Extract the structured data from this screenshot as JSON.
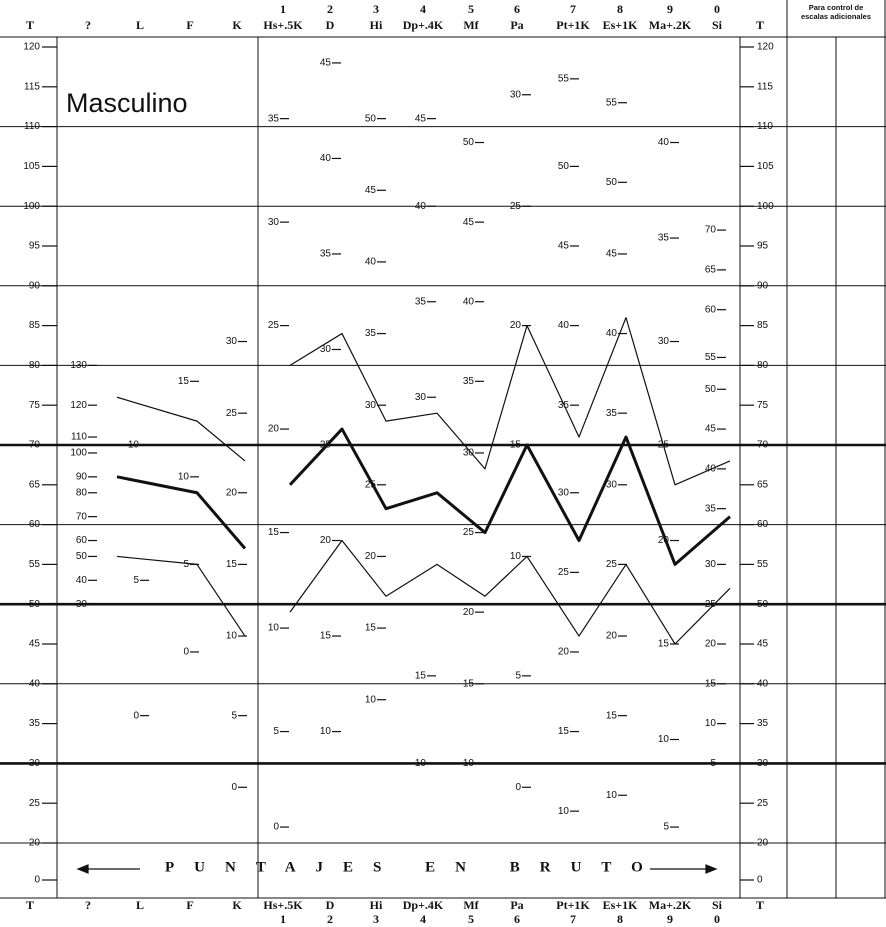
{
  "chart_data": {
    "type": "line",
    "title": "Masculino",
    "side_header": [
      "Para control de",
      "escalas adicionales"
    ],
    "raw_score_caption": "PUNTAJES EN BRUTO",
    "axis_label": "T",
    "categories": [
      "?",
      "L",
      "F",
      "K",
      "Hs+.5K",
      "D",
      "Hi",
      "Dp+.4K",
      "Mf",
      "Pa",
      "Pt+1K",
      "Es+1K",
      "Ma+.2K",
      "Si"
    ],
    "scale_numbers": [
      null,
      null,
      null,
      null,
      "1",
      "2",
      "3",
      "4",
      "5",
      "6",
      "7",
      "8",
      "9",
      "0"
    ],
    "ylim": [
      0,
      120
    ],
    "yticks": [
      120,
      115,
      110,
      105,
      100,
      95,
      90,
      85,
      80,
      75,
      70,
      65,
      60,
      55,
      50,
      45,
      40,
      35,
      30,
      25,
      20,
      0
    ],
    "grid_lines": [
      110,
      100,
      90,
      80,
      70,
      60,
      50,
      40,
      30,
      20
    ],
    "thick_grid_lines": [
      70,
      50,
      30
    ],
    "series": [
      {
        "color": "#111",
        "line_width": 1.2,
        "values": [
          null,
          76,
          73,
          68,
          80,
          84,
          73,
          74,
          67,
          85,
          71,
          86,
          65,
          68
        ]
      },
      {
        "color": "#111",
        "line_width": 3,
        "values": [
          null,
          66,
          64,
          57,
          65,
          72,
          62,
          64,
          59,
          70,
          58,
          71,
          55,
          61
        ]
      },
      {
        "color": "#111",
        "line_width": 1.2,
        "values": [
          null,
          56,
          55,
          46,
          49,
          58,
          51,
          55,
          51,
          56,
          46,
          55,
          45,
          52
        ]
      }
    ],
    "raw_scales": [
      [
        {
          "value": 80,
          "label": "130"
        },
        {
          "value": 75,
          "label": "120"
        },
        {
          "value": 71,
          "label": "110"
        },
        {
          "value": 69,
          "label": "100"
        },
        {
          "value": 66,
          "label": "90"
        },
        {
          "value": 64,
          "label": "80"
        },
        {
          "value": 61,
          "label": "70"
        },
        {
          "value": 58,
          "label": "60"
        },
        {
          "value": 56,
          "label": "50"
        },
        {
          "value": 53,
          "label": "40"
        },
        {
          "value": 50,
          "label": "30"
        }
      ],
      [
        {
          "value": 70,
          "label": "10"
        },
        {
          "value": 53,
          "label": "5"
        },
        {
          "value": 36,
          "label": "0"
        }
      ],
      [
        {
          "value": 78,
          "label": "15"
        },
        {
          "value": 66,
          "label": "10"
        },
        {
          "value": 55,
          "label": "5"
        },
        {
          "value": 44,
          "label": "0"
        }
      ],
      [
        {
          "value": 83,
          "label": "30"
        },
        {
          "value": 74,
          "label": "25"
        },
        {
          "value": 64,
          "label": "20"
        },
        {
          "value": 55,
          "label": "15"
        },
        {
          "value": 46,
          "label": "10"
        },
        {
          "value": 36,
          "label": "5"
        },
        {
          "value": 27,
          "label": "0"
        }
      ],
      [
        {
          "value": 111,
          "label": "35"
        },
        {
          "value": 98,
          "label": "30"
        },
        {
          "value": 85,
          "label": "25"
        },
        {
          "value": 72,
          "label": "20"
        },
        {
          "value": 59,
          "label": "15"
        },
        {
          "value": 47,
          "label": "10"
        },
        {
          "value": 34,
          "label": "5"
        },
        {
          "value": 22,
          "label": "0"
        }
      ],
      [
        {
          "value": 118,
          "label": "45"
        },
        {
          "value": 106,
          "label": "40"
        },
        {
          "value": 94,
          "label": "35"
        },
        {
          "value": 82,
          "label": "30"
        },
        {
          "value": 70,
          "label": "25"
        },
        {
          "value": 58,
          "label": "20"
        },
        {
          "value": 46,
          "label": "15"
        },
        {
          "value": 34,
          "label": "10"
        }
      ],
      [
        {
          "value": 111,
          "label": "50"
        },
        {
          "value": 102,
          "label": "45"
        },
        {
          "value": 93,
          "label": "40"
        },
        {
          "value": 84,
          "label": "35"
        },
        {
          "value": 75,
          "label": "30"
        },
        {
          "value": 65,
          "label": "25"
        },
        {
          "value": 56,
          "label": "20"
        },
        {
          "value": 47,
          "label": "15"
        },
        {
          "value": 38,
          "label": "10"
        }
      ],
      [
        {
          "value": 111,
          "label": "45"
        },
        {
          "value": 100,
          "label": "40"
        },
        {
          "value": 88,
          "label": "35"
        },
        {
          "value": 76,
          "label": "30"
        },
        {
          "value": 41,
          "label": "15"
        },
        {
          "value": 30,
          "label": "10"
        }
      ],
      [
        {
          "value": 108,
          "label": "50"
        },
        {
          "value": 98,
          "label": "45"
        },
        {
          "value": 88,
          "label": "40"
        },
        {
          "value": 78,
          "label": "35"
        },
        {
          "value": 69,
          "label": "30"
        },
        {
          "value": 59,
          "label": "25"
        },
        {
          "value": 49,
          "label": "20"
        },
        {
          "value": 40,
          "label": "15"
        },
        {
          "value": 30,
          "label": "10"
        }
      ],
      [
        {
          "value": 114,
          "label": "30"
        },
        {
          "value": 100,
          "label": "25"
        },
        {
          "value": 85,
          "label": "20"
        },
        {
          "value": 70,
          "label": "15"
        },
        {
          "value": 56,
          "label": "10"
        },
        {
          "value": 41,
          "label": "5"
        },
        {
          "value": 27,
          "label": "0"
        }
      ],
      [
        {
          "value": 116,
          "label": "55"
        },
        {
          "value": 105,
          "label": "50"
        },
        {
          "value": 95,
          "label": "45"
        },
        {
          "value": 85,
          "label": "40"
        },
        {
          "value": 75,
          "label": "35"
        },
        {
          "value": 64,
          "label": "30"
        },
        {
          "value": 54,
          "label": "25"
        },
        {
          "value": 44,
          "label": "20"
        },
        {
          "value": 34,
          "label": "15"
        },
        {
          "value": 24,
          "label": "10"
        }
      ],
      [
        {
          "value": 113,
          "label": "55"
        },
        {
          "value": 103,
          "label": "50"
        },
        {
          "value": 94,
          "label": "45"
        },
        {
          "value": 84,
          "label": "40"
        },
        {
          "value": 74,
          "label": "35"
        },
        {
          "value": 65,
          "label": "30"
        },
        {
          "value": 55,
          "label": "25"
        },
        {
          "value": 46,
          "label": "20"
        },
        {
          "value": 36,
          "label": "15"
        },
        {
          "value": 26,
          "label": "10"
        }
      ],
      [
        {
          "value": 108,
          "label": "40"
        },
        {
          "value": 96,
          "label": "35"
        },
        {
          "value": 83,
          "label": "30"
        },
        {
          "value": 70,
          "label": "25"
        },
        {
          "value": 58,
          "label": "20"
        },
        {
          "value": 45,
          "label": "15"
        },
        {
          "value": 33,
          "label": "10"
        },
        {
          "value": 22,
          "label": "5"
        }
      ],
      [
        {
          "value": 97,
          "label": "70"
        },
        {
          "value": 92,
          "label": "65"
        },
        {
          "value": 87,
          "label": "60"
        },
        {
          "value": 81,
          "label": "55"
        },
        {
          "value": 77,
          "label": "50"
        },
        {
          "value": 72,
          "label": "45"
        },
        {
          "value": 67,
          "label": "40"
        },
        {
          "value": 62,
          "label": "35"
        },
        {
          "value": 55,
          "label": "30"
        },
        {
          "value": 50,
          "label": "25"
        },
        {
          "value": 45,
          "label": "20"
        },
        {
          "value": 40,
          "label": "15"
        },
        {
          "value": 35,
          "label": "10"
        },
        {
          "value": 30,
          "label": "5"
        }
      ]
    ]
  }
}
